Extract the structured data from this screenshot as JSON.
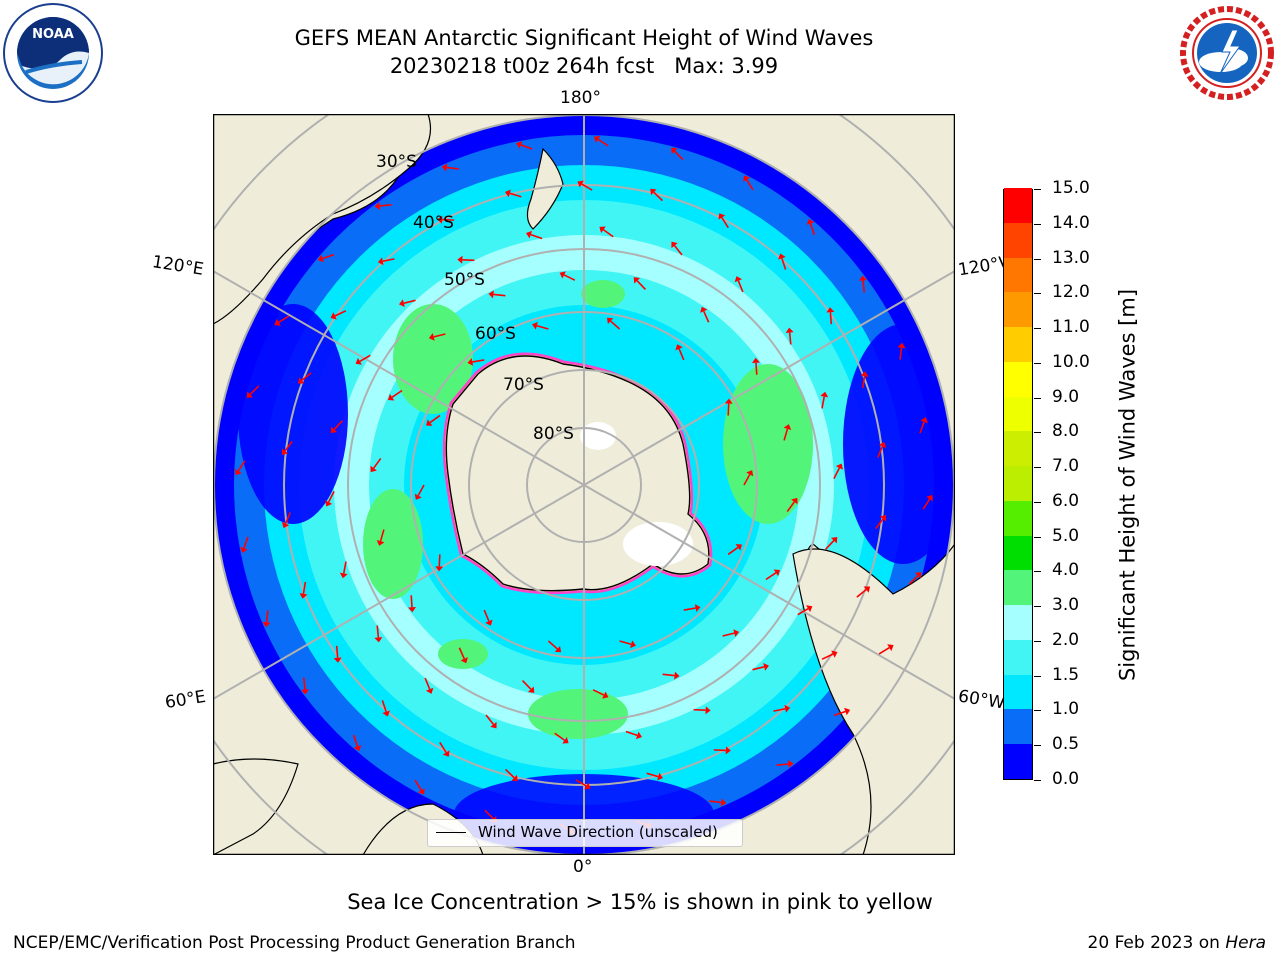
{
  "title": {
    "line1": "GEFS MEAN Antarctic Significant Height of Wind Waves",
    "line2": "20230218 t00z 264h fcst   Max: 3.99"
  },
  "logos": {
    "left": {
      "text": "NOAA",
      "icon": "noaa-logo-icon",
      "ring_text": "NATIONAL OCEANIC AND ATMOSPHERIC ADMINISTRATION · U.S. DEPARTMENT OF COMMERCE"
    },
    "right": {
      "ring_text": "NATIONAL WEATHER SERVICE",
      "icon": "nws-logo-icon"
    }
  },
  "map": {
    "projection": "south-polar-stereographic",
    "longitude_labels": [
      "180°",
      "120°E",
      "120°W",
      "60°E",
      "60°W",
      "0°"
    ],
    "latitude_labels": [
      "30°S",
      "40°S",
      "50°S",
      "60°S",
      "70°S",
      "80°S"
    ],
    "colors": {
      "land": "#efedda",
      "antarctica": "#efedda",
      "ocean_low": "#0000ff",
      "grid": "#b0b0b0"
    }
  },
  "legend": {
    "label": "Wind Wave Direction (unscaled)"
  },
  "colorbar": {
    "label": "Significant Height of Wind Waves [m]",
    "ticks": [
      "0.0",
      "0.5",
      "1.0",
      "1.5",
      "2.0",
      "3.0",
      "4.0",
      "5.0",
      "6.0",
      "7.0",
      "8.0",
      "9.0",
      "10.0",
      "11.0",
      "12.0",
      "13.0",
      "14.0",
      "15.0"
    ],
    "colors": [
      "#0000ff",
      "#0a6df7",
      "#00e8ff",
      "#41f5f5",
      "#a6ffff",
      "#52f57a",
      "#00dd00",
      "#55ee00",
      "#bbee00",
      "#ccee00",
      "#eeff00",
      "#ffff00",
      "#ffcc00",
      "#ff9900",
      "#ff7700",
      "#ff4400",
      "#ff0000"
    ]
  },
  "caption": "Sea Ice Concentration > 15% is shown in pink to yellow",
  "footer": {
    "left": "NCEP/EMC/Verification Post Processing Product Generation Branch",
    "date": "20 Feb 2023 on ",
    "system": "Hera"
  }
}
